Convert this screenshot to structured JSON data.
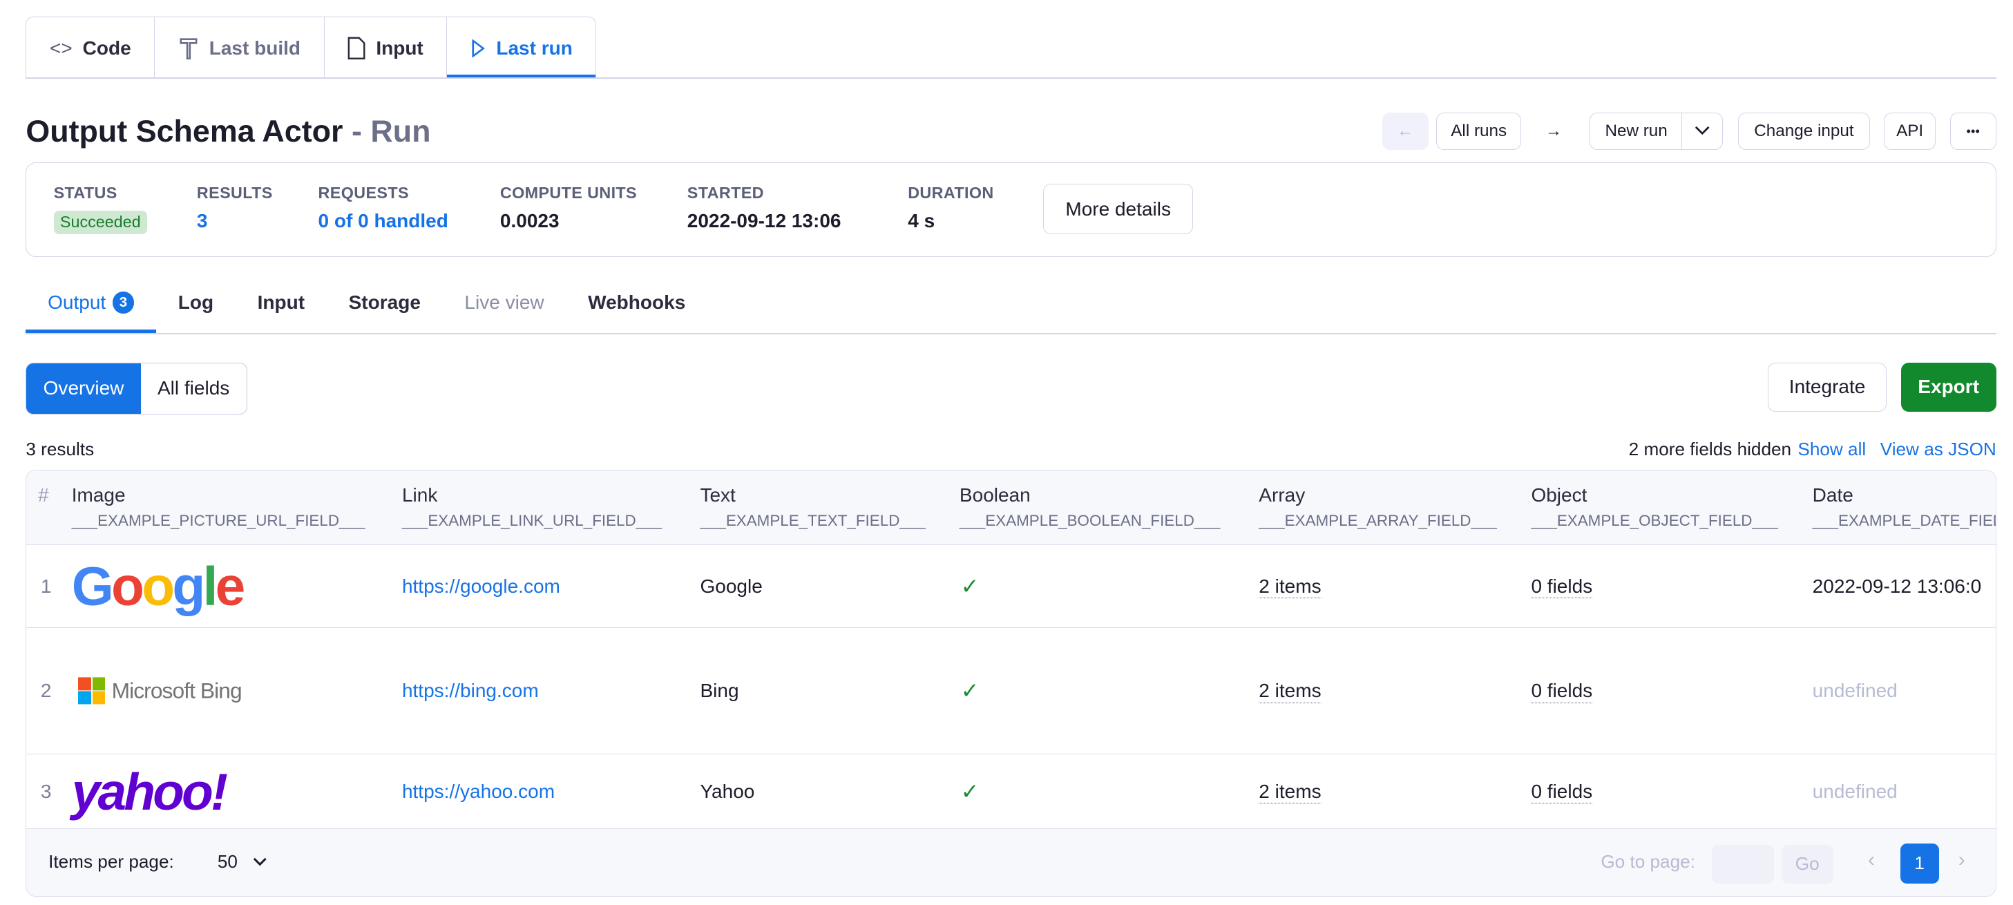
{
  "top_tabs": [
    {
      "label": "Code",
      "icon": "code-icon"
    },
    {
      "label": "Last build",
      "icon": "hammer-icon"
    },
    {
      "label": "Input",
      "icon": "file-icon"
    },
    {
      "label": "Last run",
      "icon": "play-icon",
      "active": true
    }
  ],
  "header": {
    "title": "Output Schema Actor",
    "subtitle": "- Run"
  },
  "actions": {
    "all_runs": "All runs",
    "new_run": "New run",
    "change_input": "Change input",
    "api": "API",
    "more": "•••"
  },
  "stats": {
    "status_label": "STATUS",
    "status_value": "Succeeded",
    "results_label": "RESULTS",
    "results_value": "3",
    "requests_label": "REQUESTS",
    "requests_value": "0 of 0 handled",
    "cu_label": "COMPUTE UNITS",
    "cu_value": "0.0023",
    "started_label": "STARTED",
    "started_value": "2022-09-12 13:06",
    "duration_label": "DURATION",
    "duration_value": "4 s",
    "more_details": "More details"
  },
  "sub_tabs": [
    {
      "label": "Output",
      "count": "3",
      "active": true
    },
    {
      "label": "Log"
    },
    {
      "label": "Input"
    },
    {
      "label": "Storage"
    },
    {
      "label": "Live view",
      "disabled": true
    },
    {
      "label": "Webhooks"
    }
  ],
  "view": {
    "overview": "Overview",
    "all_fields": "All fields",
    "integrate": "Integrate",
    "export": "Export"
  },
  "summary": {
    "results": "3 results",
    "hidden": "2 more fields hidden",
    "show_all": "Show all",
    "view_json": "View as JSON"
  },
  "table": {
    "columns": [
      {
        "label": "#"
      },
      {
        "label": "Image",
        "field": "___EXAMPLE_PICTURE_URL_FIELD___"
      },
      {
        "label": "Link",
        "field": "___EXAMPLE_LINK_URL_FIELD___"
      },
      {
        "label": "Text",
        "field": "___EXAMPLE_TEXT_FIELD___"
      },
      {
        "label": "Boolean",
        "field": "___EXAMPLE_BOOLEAN_FIELD___"
      },
      {
        "label": "Array",
        "field": "___EXAMPLE_ARRAY_FIELD___"
      },
      {
        "label": "Object",
        "field": "___EXAMPLE_OBJECT_FIELD___"
      },
      {
        "label": "Date",
        "field": "___EXAMPLE_DATE_FIELD___"
      }
    ],
    "rows": [
      {
        "n": "1",
        "logo": "Google",
        "link": "https://google.com",
        "text": "Google",
        "bool": "✓",
        "array": "2 items",
        "object": "0 fields",
        "date": "2022-09-12 13:06:0"
      },
      {
        "n": "2",
        "logo": "Microsoft Bing",
        "link": "https://bing.com",
        "text": "Bing",
        "bool": "✓",
        "array": "2 items",
        "object": "0 fields",
        "date": "undefined"
      },
      {
        "n": "3",
        "logo": "yahoo!",
        "link": "https://yahoo.com",
        "text": "Yahoo",
        "bool": "✓",
        "array": "2 items",
        "object": "0 fields",
        "date": "undefined"
      }
    ]
  },
  "footer": {
    "items_per_page": "Items per page:",
    "per_page_value": "50",
    "go_to_page": "Go to page:",
    "go": "Go",
    "current_page": "1"
  },
  "colors": {
    "accent": "#1673e6",
    "success": "#1a8a2e",
    "export": "#13892d"
  }
}
